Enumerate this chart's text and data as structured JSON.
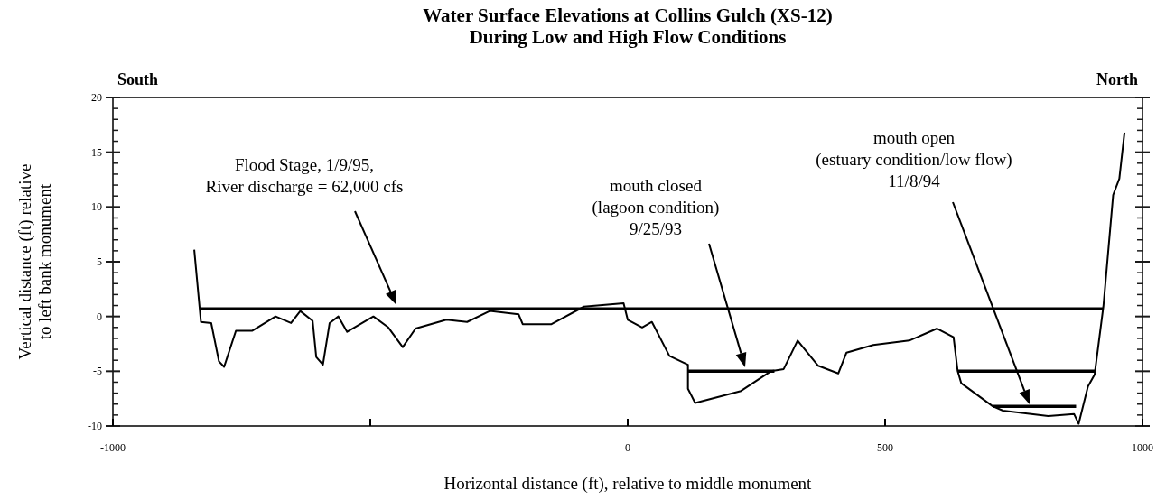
{
  "chart_data": {
    "type": "line",
    "title": "Water Surface Elevations at Collins Gulch (XS-12)\nDuring Low and High Flow Conditions",
    "xlabel": "Horizontal distance (ft), relative to middle monument",
    "ylabel": "Vertical distance (ft) relative\nto left bank monument",
    "xlim": [
      -1000,
      1000
    ],
    "xticks": [
      -1000,
      {
        "value": -500,
        "label": null
      },
      0,
      500,
      1000
    ],
    "ylim": [
      -10,
      20
    ],
    "yticks": [
      -10,
      {
        "value": -9,
        "label": null
      },
      {
        "value": -8,
        "label": null
      },
      {
        "value": -7,
        "label": null
      },
      {
        "value": -6,
        "label": null
      },
      -5,
      {
        "value": -4,
        "label": null
      },
      {
        "value": -3,
        "label": null
      },
      {
        "value": -2,
        "label": null
      },
      {
        "value": -1,
        "label": null
      },
      0,
      {
        "value": 1,
        "label": null
      },
      {
        "value": 2,
        "label": null
      },
      {
        "value": 3,
        "label": null
      },
      {
        "value": 4,
        "label": null
      },
      5,
      {
        "value": 6,
        "label": null
      },
      {
        "value": 7,
        "label": null
      },
      {
        "value": 8,
        "label": null
      },
      {
        "value": 9,
        "label": null
      },
      10,
      {
        "value": 11,
        "label": null
      },
      {
        "value": 12,
        "label": null
      },
      {
        "value": 13,
        "label": null
      },
      {
        "value": 14,
        "label": null
      },
      15,
      {
        "value": 16,
        "label": null
      },
      {
        "value": 17,
        "label": null
      },
      {
        "value": 18,
        "label": null
      },
      {
        "value": 19,
        "label": null
      },
      20
    ],
    "grid": false,
    "marker": "none",
    "line_style": "solid",
    "annotations": [
      "South",
      "North",
      "Flood Stage, 1/9/95,\nRiver discharge = 62,000 cfs",
      "mouth closed\n(lagoon condition)\n9/25/93",
      "mouth open\n(estuary condition/low flow)\n11/8/94"
    ],
    "series": [
      {
        "color": "#000000",
        "x": [
          -842,
          -829,
          -809,
          -794,
          -784,
          -761,
          -729,
          -684,
          -654,
          -636,
          -612,
          -605,
          -592,
          -579,
          -562,
          -545,
          -494,
          -465,
          -437,
          -412,
          -352,
          -312,
          -268,
          -212,
          -204,
          -148,
          -85,
          -8,
          0,
          28,
          47,
          81,
          117,
          117,
          131,
          220,
          278,
          303,
          330,
          370,
          409,
          425,
          477,
          547,
          601,
          633,
          641,
          648,
          709,
          729,
          817,
          867,
          876,
          894,
          907,
          924,
          943,
          955,
          965
        ],
        "values": [
          6.1,
          -0.5,
          -0.6,
          -4.1,
          -4.6,
          -1.3,
          -1.3,
          0,
          -0.6,
          0.5,
          -0.4,
          -3.7,
          -4.4,
          -0.6,
          0,
          -1.4,
          0,
          -1.0,
          -2.8,
          -1.1,
          -0.3,
          -0.5,
          0.5,
          0.2,
          -0.7,
          -0.7,
          0.9,
          1.2,
          -0.3,
          -1.0,
          -0.5,
          -3.6,
          -4.4,
          -6.6,
          -7.9,
          -6.8,
          -5.0,
          -4.8,
          -2.2,
          -4.5,
          -5.2,
          -3.3,
          -2.6,
          -2.2,
          -1.1,
          -1.9,
          -5.0,
          -6.1,
          -8.2,
          -8.6,
          -9.1,
          -8.9,
          -9.8,
          -6.4,
          -5.3,
          0.9,
          11.1,
          12.6,
          16.8
        ]
      },
      {
        "color": "#000000",
        "x": [
          -829,
          924
        ],
        "values": [
          0.7,
          0.7
        ]
      },
      {
        "color": "#000000",
        "x": [
          117,
          285,
          400,
          641,
          907
        ],
        "values": [
          -5,
          -5,
          null,
          -5,
          -5
        ]
      },
      {
        "color": "#000000",
        "x": [
          709,
          871
        ],
        "values": [
          -8.2,
          -8.2
        ]
      }
    ]
  }
}
